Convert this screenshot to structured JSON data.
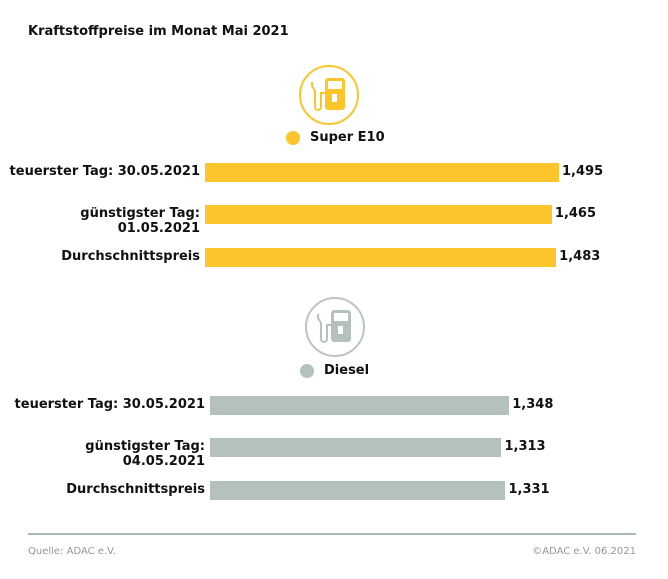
{
  "title": "Kraftstoffpreise im Monat Mai 2021",
  "footer": {
    "source": "Quelle: ADAC e.V.",
    "copyright": "©ADAC e.V. 06.2021"
  },
  "chart_data": [
    {
      "type": "bar",
      "orientation": "horizontal",
      "title": "Super E10",
      "icon": "fuel-pump-icon",
      "color": "#FBC52B",
      "categories": [
        "teuerster Tag: 30.05.2021",
        "günstigster Tag: 01.05.2021",
        "Durchschnittspreis"
      ],
      "values": [
        1.495,
        1.465,
        1.483
      ],
      "labels": [
        "1,495",
        "1,465",
        "1,483"
      ]
    },
    {
      "type": "bar",
      "orientation": "horizontal",
      "title": "Diesel",
      "icon": "fuel-pump-icon",
      "color": "#B5C1BD",
      "categories": [
        "teuerster Tag: 30.05.2021",
        "günstigster Tag: 04.05.2021",
        "Durchschnittspreis"
      ],
      "values": [
        1.348,
        1.313,
        1.331
      ],
      "labels": [
        "1,348",
        "1,313",
        "1,331"
      ]
    }
  ]
}
